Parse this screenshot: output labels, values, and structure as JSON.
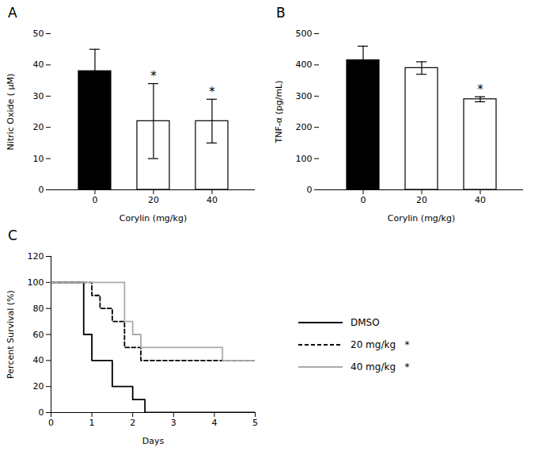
{
  "chart_data": [
    {
      "type": "bar",
      "title": "A",
      "categories": [
        "0",
        "20",
        "40"
      ],
      "values": [
        38,
        22,
        22
      ],
      "errors": [
        7,
        12,
        7
      ],
      "colors": [
        "black",
        "white",
        "white"
      ],
      "ylabel": "Nitric Oxide ( μM)",
      "xlabel": "Corylin (mg/kg)",
      "ylim": [
        0,
        50
      ],
      "yticks": [
        0,
        10,
        20,
        30,
        40,
        50
      ],
      "annotations": [
        {
          "category": "20",
          "text": "*"
        },
        {
          "category": "40",
          "text": "*"
        }
      ]
    },
    {
      "type": "bar",
      "title": "B",
      "categories": [
        "0",
        "20",
        "40"
      ],
      "values": [
        415,
        390,
        290
      ],
      "errors": [
        45,
        20,
        8
      ],
      "colors": [
        "black",
        "white",
        "white"
      ],
      "ylabel": "TNF-α (pg/mL)",
      "xlabel": "Corylin (mg/kg)",
      "ylim": [
        0,
        500
      ],
      "yticks": [
        0,
        100,
        200,
        300,
        400,
        500
      ],
      "annotations": [
        {
          "category": "40",
          "text": "*"
        }
      ]
    },
    {
      "type": "line",
      "title": "C",
      "ylabel": "Percent Survival (%)",
      "xlabel": "Days",
      "xlim": [
        0,
        5
      ],
      "xticks": [
        0,
        1,
        2,
        3,
        4,
        5
      ],
      "ylim": [
        0,
        120
      ],
      "yticks": [
        0,
        20,
        40,
        60,
        80,
        100,
        120
      ],
      "legend": "right",
      "series": [
        {
          "name": "DMSO",
          "color": "black",
          "line_style": "solid",
          "x": [
            0,
            0.8,
            0.8,
            1.0,
            1.0,
            1.5,
            1.5,
            2.0,
            2.0,
            2.3,
            2.3,
            2.7,
            2.7,
            5.0
          ],
          "values": [
            100,
            100,
            60,
            60,
            40,
            40,
            20,
            20,
            10,
            10,
            0,
            0,
            0,
            0
          ]
        },
        {
          "name": "20 mg/kg   *",
          "color": "black",
          "line_style": "dashed",
          "x": [
            0,
            1.0,
            1.0,
            1.2,
            1.2,
            1.5,
            1.5,
            1.8,
            1.8,
            2.2,
            2.2,
            2.8,
            2.8,
            4.2,
            4.2,
            5.0
          ],
          "values": [
            100,
            100,
            90,
            90,
            80,
            80,
            70,
            70,
            50,
            50,
            40,
            40,
            40,
            40,
            40,
            40
          ]
        },
        {
          "name": "40 mg/kg   *",
          "color": "#aaaaaa",
          "line_style": "solid",
          "x": [
            0,
            1.8,
            1.8,
            2.0,
            2.0,
            2.2,
            2.2,
            2.5,
            2.5,
            4.2,
            4.2,
            5.0
          ],
          "values": [
            100,
            100,
            70,
            70,
            60,
            60,
            50,
            50,
            50,
            50,
            40,
            40
          ]
        }
      ]
    }
  ]
}
